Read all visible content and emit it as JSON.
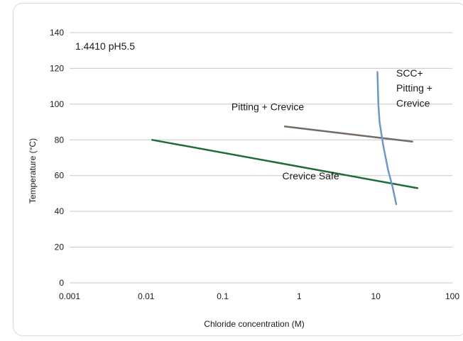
{
  "chart_data": {
    "type": "line",
    "title": "1.4410 pH5.5",
    "xlabel": "Chloride concentration (M)",
    "ylabel": "Temperature (°C)",
    "xscale": "log",
    "xlim": [
      0.001,
      100
    ],
    "ylim": [
      0,
      140
    ],
    "x_tick_labels": [
      "0.001",
      "0.01",
      "0.1",
      "1",
      "10",
      "100"
    ],
    "x_ticks": [
      0.001,
      0.01,
      0.1,
      1,
      10,
      100
    ],
    "y_tick_labels": [
      "0",
      "20",
      "40",
      "60",
      "80",
      "100",
      "120",
      "140"
    ],
    "y_ticks": [
      0,
      20,
      40,
      60,
      80,
      100,
      120,
      140
    ],
    "grid": "horizontal",
    "series": [
      {
        "color": "#1f6b3a",
        "x": [
          0.012,
          35
        ],
        "y": [
          80,
          53
        ]
      },
      {
        "color": "#756a62",
        "x": [
          0.65,
          30
        ],
        "y": [
          87.5,
          79
        ]
      },
      {
        "color": "#6f97c8",
        "x": [
          10.5,
          10.8,
          11.2,
          12.5,
          14.5,
          16.5,
          18.5
        ],
        "y": [
          118,
          100,
          90,
          77,
          63,
          54,
          44
        ]
      }
    ],
    "annotations": [
      {
        "text": "Crevice Safe",
        "x": 0.6,
        "y": 58
      },
      {
        "text": "Pitting + Crevice",
        "x": 0.13,
        "y": 96.5
      },
      {
        "text": "SCC+",
        "x": 18.5,
        "y": 115.5
      },
      {
        "text": "Pitting +",
        "x": 18.5,
        "y": 107
      },
      {
        "text": "Crevice",
        "x": 18.5,
        "y": 98.5
      }
    ]
  }
}
